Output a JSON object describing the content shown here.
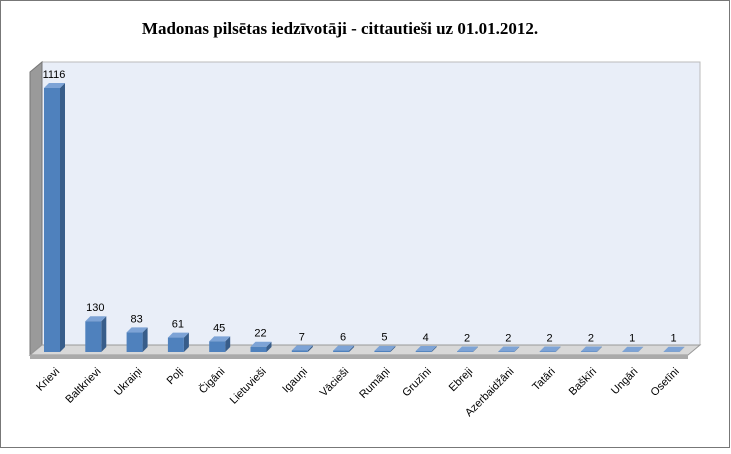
{
  "chart_data": {
    "type": "bar3d",
    "title": "Madonas pilsētas iedzīvotāji - cittautieši uz 01.01.2012.",
    "categories": [
      "Krievi",
      "Baltkrievi",
      "Ukraiņi",
      "Poļi",
      "Čigāni",
      "Lietuvieši",
      "Igauņi",
      "Vācieši",
      "Rumāņi",
      "Gruzīni",
      "Ebreji",
      "Azerbaidžāni",
      "Tatāri",
      "Baškīri",
      "Ungāri",
      "Osetīni"
    ],
    "values": [
      1116,
      130,
      83,
      61,
      45,
      22,
      7,
      6,
      5,
      4,
      2,
      2,
      2,
      2,
      1,
      1
    ],
    "color": "#4f81bd"
  }
}
